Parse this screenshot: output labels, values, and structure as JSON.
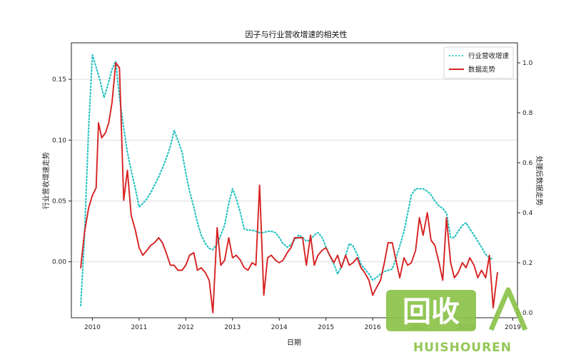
{
  "chart_data": {
    "type": "line",
    "title": "因子与行业营收增速的相关性",
    "xlabel": "日期",
    "ylabel_left": "行业营收增速走势",
    "ylabel_right": "处理后数据走势",
    "grid": "horizontal",
    "legend_position": "top-right",
    "x_range": [
      2009.55,
      2019.1
    ],
    "x_ticks": [
      {
        "value": 2010,
        "label": "2010"
      },
      {
        "value": 2011,
        "label": "2011"
      },
      {
        "value": 2012,
        "label": "2012"
      },
      {
        "value": 2013,
        "label": "2013"
      },
      {
        "value": 2014,
        "label": "2014"
      },
      {
        "value": 2015,
        "label": "2015"
      },
      {
        "value": 2016,
        "label": "2016"
      },
      {
        "value": 2017,
        "label": "2017"
      },
      {
        "value": 2018,
        "label": "2018"
      },
      {
        "value": 2019,
        "label": "2019"
      }
    ],
    "y_left": {
      "range": [
        -0.046,
        0.18
      ],
      "ticks": [
        {
          "value": 0.0,
          "label": "0.00"
        },
        {
          "value": 0.05,
          "label": "0.05"
        },
        {
          "value": 0.1,
          "label": "0.10"
        },
        {
          "value": 0.15,
          "label": "0.15"
        }
      ]
    },
    "y_right": {
      "range": [
        -0.02,
        1.08
      ],
      "ticks": [
        {
          "value": 0.0,
          "label": "0.0"
        },
        {
          "value": 0.2,
          "label": "0.2"
        },
        {
          "value": 0.4,
          "label": "0.4"
        },
        {
          "value": 0.6,
          "label": "0.6"
        },
        {
          "value": 0.8,
          "label": "0.8"
        },
        {
          "value": 1.0,
          "label": "1.0"
        }
      ]
    },
    "series": [
      {
        "name": "行业营收增速",
        "axis": "left",
        "color": "#2cc3c3",
        "style": "dotted",
        "points": [
          [
            2009.75,
            -0.036
          ],
          [
            2009.83,
            0.02
          ],
          [
            2009.92,
            0.11
          ],
          [
            2010.0,
            0.17
          ],
          [
            2010.08,
            0.16
          ],
          [
            2010.17,
            0.148
          ],
          [
            2010.25,
            0.135
          ],
          [
            2010.33,
            0.145
          ],
          [
            2010.42,
            0.158
          ],
          [
            2010.5,
            0.165
          ],
          [
            2010.58,
            0.135
          ],
          [
            2010.67,
            0.11
          ],
          [
            2010.75,
            0.09
          ],
          [
            2010.83,
            0.075
          ],
          [
            2010.92,
            0.06
          ],
          [
            2011.0,
            0.045
          ],
          [
            2011.08,
            0.048
          ],
          [
            2011.17,
            0.052
          ],
          [
            2011.25,
            0.057
          ],
          [
            2011.33,
            0.063
          ],
          [
            2011.42,
            0.07
          ],
          [
            2011.5,
            0.077
          ],
          [
            2011.58,
            0.085
          ],
          [
            2011.67,
            0.095
          ],
          [
            2011.75,
            0.108
          ],
          [
            2011.83,
            0.1
          ],
          [
            2011.92,
            0.09
          ],
          [
            2012.0,
            0.073
          ],
          [
            2012.08,
            0.058
          ],
          [
            2012.17,
            0.045
          ],
          [
            2012.25,
            0.032
          ],
          [
            2012.33,
            0.022
          ],
          [
            2012.42,
            0.015
          ],
          [
            2012.5,
            0.011
          ],
          [
            2012.58,
            0.01
          ],
          [
            2012.67,
            0.015
          ],
          [
            2012.75,
            0.022
          ],
          [
            2012.83,
            0.03
          ],
          [
            2012.92,
            0.048
          ],
          [
            2013.0,
            0.06
          ],
          [
            2013.08,
            0.052
          ],
          [
            2013.17,
            0.04
          ],
          [
            2013.25,
            0.027
          ],
          [
            2013.33,
            0.026
          ],
          [
            2013.42,
            0.026
          ],
          [
            2013.5,
            0.025
          ],
          [
            2013.58,
            0.024
          ],
          [
            2013.67,
            0.024
          ],
          [
            2013.75,
            0.025
          ],
          [
            2013.83,
            0.025
          ],
          [
            2013.92,
            0.024
          ],
          [
            2014.0,
            0.02
          ],
          [
            2014.08,
            0.015
          ],
          [
            2014.17,
            0.012
          ],
          [
            2014.25,
            0.014
          ],
          [
            2014.33,
            0.018
          ],
          [
            2014.42,
            0.022
          ],
          [
            2014.5,
            0.02
          ],
          [
            2014.58,
            0.017
          ],
          [
            2014.67,
            0.018
          ],
          [
            2014.75,
            0.022
          ],
          [
            2014.83,
            0.024
          ],
          [
            2014.92,
            0.02
          ],
          [
            2015.0,
            0.012
          ],
          [
            2015.08,
            0.005
          ],
          [
            2015.17,
            -0.002
          ],
          [
            2015.25,
            -0.01
          ],
          [
            2015.33,
            -0.004
          ],
          [
            2015.42,
            0.005
          ],
          [
            2015.5,
            0.015
          ],
          [
            2015.58,
            0.013
          ],
          [
            2015.67,
            0.006
          ],
          [
            2015.75,
            -0.002
          ],
          [
            2015.83,
            -0.006
          ],
          [
            2015.92,
            -0.01
          ],
          [
            2016.0,
            -0.015
          ],
          [
            2016.08,
            -0.013
          ],
          [
            2016.17,
            -0.01
          ],
          [
            2016.25,
            -0.008
          ],
          [
            2016.33,
            -0.007
          ],
          [
            2016.42,
            -0.006
          ],
          [
            2016.5,
            0.003
          ],
          [
            2016.58,
            0.013
          ],
          [
            2016.67,
            0.025
          ],
          [
            2016.75,
            0.04
          ],
          [
            2016.83,
            0.055
          ],
          [
            2016.92,
            0.06
          ],
          [
            2017.0,
            0.06
          ],
          [
            2017.08,
            0.06
          ],
          [
            2017.17,
            0.058
          ],
          [
            2017.25,
            0.055
          ],
          [
            2017.33,
            0.05
          ],
          [
            2017.42,
            0.046
          ],
          [
            2017.5,
            0.044
          ],
          [
            2017.58,
            0.04
          ],
          [
            2017.67,
            0.02
          ],
          [
            2017.75,
            0.02
          ],
          [
            2017.83,
            0.025
          ],
          [
            2017.92,
            0.03
          ],
          [
            2018.0,
            0.032
          ],
          [
            2018.08,
            0.027
          ],
          [
            2018.17,
            0.022
          ],
          [
            2018.25,
            0.017
          ],
          [
            2018.33,
            0.012
          ],
          [
            2018.42,
            0.006
          ],
          [
            2018.5,
            0.003
          ],
          [
            2018.58,
            0.002
          ]
        ]
      },
      {
        "name": "数据走势",
        "axis": "right",
        "color": "#d62222",
        "style": "solid",
        "points": [
          [
            2009.75,
            0.18
          ],
          [
            2009.83,
            0.32
          ],
          [
            2009.92,
            0.42
          ],
          [
            2010.0,
            0.47
          ],
          [
            2010.08,
            0.5
          ],
          [
            2010.13,
            0.76
          ],
          [
            2010.2,
            0.7
          ],
          [
            2010.28,
            0.72
          ],
          [
            2010.35,
            0.76
          ],
          [
            2010.42,
            0.84
          ],
          [
            2010.5,
            1.0
          ],
          [
            2010.58,
            0.98
          ],
          [
            2010.67,
            0.45
          ],
          [
            2010.75,
            0.57
          ],
          [
            2010.83,
            0.39
          ],
          [
            2010.92,
            0.33
          ],
          [
            2011.0,
            0.26
          ],
          [
            2011.08,
            0.23
          ],
          [
            2011.17,
            0.25
          ],
          [
            2011.25,
            0.27
          ],
          [
            2011.33,
            0.28
          ],
          [
            2011.42,
            0.3
          ],
          [
            2011.5,
            0.28
          ],
          [
            2011.58,
            0.24
          ],
          [
            2011.67,
            0.19
          ],
          [
            2011.75,
            0.19
          ],
          [
            2011.83,
            0.17
          ],
          [
            2011.92,
            0.17
          ],
          [
            2012.0,
            0.19
          ],
          [
            2012.08,
            0.23
          ],
          [
            2012.17,
            0.24
          ],
          [
            2012.25,
            0.17
          ],
          [
            2012.33,
            0.18
          ],
          [
            2012.42,
            0.16
          ],
          [
            2012.5,
            0.13
          ],
          [
            2012.58,
            0.0
          ],
          [
            2012.67,
            0.34
          ],
          [
            2012.75,
            0.19
          ],
          [
            2012.83,
            0.21
          ],
          [
            2012.92,
            0.3
          ],
          [
            2013.0,
            0.22
          ],
          [
            2013.08,
            0.23
          ],
          [
            2013.17,
            0.21
          ],
          [
            2013.25,
            0.18
          ],
          [
            2013.33,
            0.17
          ],
          [
            2013.42,
            0.2
          ],
          [
            2013.5,
            0.19
          ],
          [
            2013.58,
            0.51
          ],
          [
            2013.67,
            0.07
          ],
          [
            2013.75,
            0.22
          ],
          [
            2013.83,
            0.23
          ],
          [
            2013.92,
            0.21
          ],
          [
            2014.0,
            0.2
          ],
          [
            2014.08,
            0.21
          ],
          [
            2014.17,
            0.24
          ],
          [
            2014.25,
            0.26
          ],
          [
            2014.33,
            0.3
          ],
          [
            2014.42,
            0.3
          ],
          [
            2014.5,
            0.3
          ],
          [
            2014.58,
            0.19
          ],
          [
            2014.67,
            0.31
          ],
          [
            2014.75,
            0.19
          ],
          [
            2014.83,
            0.23
          ],
          [
            2014.92,
            0.25
          ],
          [
            2015.0,
            0.26
          ],
          [
            2015.08,
            0.23
          ],
          [
            2015.17,
            0.2
          ],
          [
            2015.25,
            0.23
          ],
          [
            2015.33,
            0.18
          ],
          [
            2015.42,
            0.23
          ],
          [
            2015.5,
            0.19
          ],
          [
            2015.58,
            0.2
          ],
          [
            2015.67,
            0.22
          ],
          [
            2015.75,
            0.18
          ],
          [
            2015.83,
            0.16
          ],
          [
            2015.92,
            0.13
          ],
          [
            2016.0,
            0.07
          ],
          [
            2016.08,
            0.1
          ],
          [
            2016.17,
            0.13
          ],
          [
            2016.25,
            0.2
          ],
          [
            2016.33,
            0.28
          ],
          [
            2016.42,
            0.28
          ],
          [
            2016.5,
            0.21
          ],
          [
            2016.58,
            0.14
          ],
          [
            2016.67,
            0.22
          ],
          [
            2016.75,
            0.19
          ],
          [
            2016.83,
            0.2
          ],
          [
            2016.92,
            0.25
          ],
          [
            2017.0,
            0.38
          ],
          [
            2017.08,
            0.31
          ],
          [
            2017.17,
            0.4
          ],
          [
            2017.25,
            0.29
          ],
          [
            2017.33,
            0.27
          ],
          [
            2017.42,
            0.2
          ],
          [
            2017.5,
            0.13
          ],
          [
            2017.58,
            0.38
          ],
          [
            2017.67,
            0.2
          ],
          [
            2017.75,
            0.14
          ],
          [
            2017.83,
            0.16
          ],
          [
            2017.92,
            0.2
          ],
          [
            2018.0,
            0.18
          ],
          [
            2018.08,
            0.22
          ],
          [
            2018.17,
            0.19
          ],
          [
            2018.25,
            0.14
          ],
          [
            2018.33,
            0.17
          ],
          [
            2018.42,
            0.14
          ],
          [
            2018.5,
            0.23
          ],
          [
            2018.58,
            0.02
          ],
          [
            2018.67,
            0.16
          ]
        ]
      }
    ]
  },
  "watermark": {
    "logo_text": "回收",
    "brand_text": "HUISHOUREN",
    "color": "#8bc34a"
  }
}
